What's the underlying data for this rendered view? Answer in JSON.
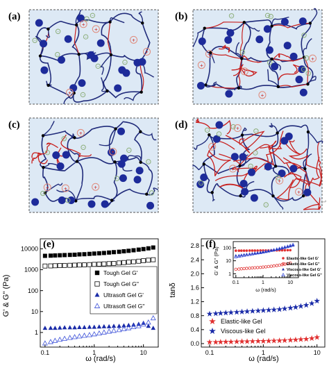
{
  "figure": {
    "panel_labels": [
      "(a)",
      "(b)",
      "(c)",
      "(d)",
      "(e)",
      "(f)"
    ],
    "colors": {
      "background": "#dde9f5",
      "chain": "#1f2a7a",
      "red_chain": "#c8201e",
      "blue_bead": "#1d2b9a",
      "plus_ion": "#e08a7a",
      "minus_ion": "#8cae7a"
    },
    "ion_symbols": {
      "plus": "+",
      "minus": "−"
    },
    "trailing_mark": "↩"
  },
  "chart_data": [
    {
      "type": "scatter",
      "panel": "(e)",
      "xlabel": "ω (rad/s)",
      "ylabel": "G' & G'' (Pa)",
      "xscale": "log",
      "yscale": "log",
      "xlim": [
        0.08,
        20
      ],
      "ylim": [
        0.2,
        30000
      ],
      "x_ticks": [
        0.1,
        1,
        10
      ],
      "x_tick_labels": [
        "0.1",
        "1",
        "10"
      ],
      "y_ticks": [
        1,
        10,
        100,
        1000,
        10000
      ],
      "y_tick_labels": [
        "1",
        "10",
        "100",
        "1000",
        "10000"
      ],
      "legend_position": "right",
      "series": [
        {
          "name": "Tough Gel G'",
          "marker": "square-filled",
          "color": "#000000",
          "x": [
            0.1,
            0.13,
            0.16,
            0.2,
            0.25,
            0.32,
            0.4,
            0.5,
            0.63,
            0.8,
            1,
            1.26,
            1.58,
            2,
            2.5,
            3.2,
            4,
            5,
            6.3,
            8,
            10,
            12.6,
            15.8
          ],
          "values": [
            4600,
            4700,
            4800,
            4900,
            5000,
            5100,
            5200,
            5400,
            5500,
            5700,
            5900,
            6100,
            6300,
            6600,
            6900,
            7200,
            7600,
            8000,
            8500,
            9100,
            9700,
            10500,
            11500
          ]
        },
        {
          "name": "Tough Gel G''",
          "marker": "square-open",
          "color": "#000000",
          "x": [
            0.1,
            0.13,
            0.16,
            0.2,
            0.25,
            0.32,
            0.4,
            0.5,
            0.63,
            0.8,
            1,
            1.26,
            1.58,
            2,
            2.5,
            3.2,
            4,
            5,
            6.3,
            8,
            10,
            12.6,
            15.8
          ],
          "values": [
            1500,
            1520,
            1550,
            1580,
            1600,
            1620,
            1650,
            1680,
            1700,
            1750,
            1800,
            1850,
            1900,
            1950,
            2000,
            2100,
            2200,
            2300,
            2400,
            2550,
            2700,
            2850,
            3000
          ]
        },
        {
          "name": "Ultrasoft Gel G'",
          "marker": "triangle-filled",
          "color": "#1a2ba8",
          "x": [
            0.1,
            0.13,
            0.16,
            0.2,
            0.25,
            0.32,
            0.4,
            0.5,
            0.63,
            0.8,
            1,
            1.26,
            1.58,
            2,
            2.5,
            3.2,
            4,
            5,
            6.3,
            8,
            10,
            12.6,
            15.8
          ],
          "values": [
            1.6,
            1.6,
            1.6,
            1.65,
            1.7,
            1.7,
            1.7,
            1.75,
            1.75,
            1.8,
            1.8,
            1.85,
            1.9,
            1.9,
            2.0,
            2.0,
            2.1,
            2.2,
            2.3,
            2.5,
            2.8,
            2.0,
            1.6
          ]
        },
        {
          "name": "Ultrasoft Gel G''",
          "marker": "triangle-open",
          "color": "#3a4fd8",
          "x": [
            0.1,
            0.13,
            0.16,
            0.2,
            0.25,
            0.32,
            0.4,
            0.5,
            0.63,
            0.8,
            1,
            1.26,
            1.58,
            2,
            2.5,
            3.2,
            4,
            5,
            6.3,
            8,
            10,
            12.6,
            15.8
          ],
          "values": [
            0.3,
            0.35,
            0.4,
            0.45,
            0.5,
            0.55,
            0.6,
            0.65,
            0.7,
            0.75,
            0.82,
            0.9,
            1.0,
            1.1,
            1.2,
            1.3,
            1.45,
            1.6,
            1.8,
            2.0,
            2.4,
            3.0,
            4.8
          ]
        }
      ]
    },
    {
      "type": "scatter",
      "panel": "(f)",
      "xlabel": "ω (rad/s)",
      "ylabel": "tanδ",
      "xscale": "log",
      "xlim": [
        0.07,
        14
      ],
      "ylim": [
        -0.1,
        3.0
      ],
      "x_ticks": [
        0.1,
        1,
        10
      ],
      "x_tick_labels": [
        "0.1",
        "1",
        "10"
      ],
      "y_ticks": [
        0.0,
        0.4,
        0.8,
        1.2,
        1.6,
        2.0,
        2.4,
        2.8
      ],
      "y_tick_labels": [
        "0.0",
        "0.4",
        "0.8",
        "1.2",
        "1.6",
        "2.0",
        "2.4",
        "2.8"
      ],
      "legend_position": "bottom-left",
      "series": [
        {
          "name": "Elastic-like Gel",
          "marker": "star",
          "color": "#e03030",
          "x": [
            0.1,
            0.13,
            0.16,
            0.2,
            0.25,
            0.32,
            0.4,
            0.5,
            0.63,
            0.8,
            1,
            1.26,
            1.58,
            2,
            2.5,
            3.2,
            4,
            5,
            6.3,
            8,
            10
          ],
          "values": [
            0.04,
            0.04,
            0.045,
            0.05,
            0.05,
            0.055,
            0.06,
            0.06,
            0.065,
            0.07,
            0.07,
            0.075,
            0.08,
            0.085,
            0.09,
            0.1,
            0.11,
            0.12,
            0.13,
            0.15,
            0.18
          ]
        },
        {
          "name": "Viscous-like Gel",
          "marker": "star",
          "color": "#1a2ba8",
          "x": [
            0.1,
            0.13,
            0.16,
            0.2,
            0.25,
            0.32,
            0.4,
            0.5,
            0.63,
            0.8,
            1,
            1.26,
            1.58,
            2,
            2.5,
            3.2,
            4,
            5,
            6.3,
            8,
            10
          ],
          "values": [
            0.85,
            0.86,
            0.87,
            0.88,
            0.89,
            0.9,
            0.91,
            0.92,
            0.93,
            0.94,
            0.95,
            0.96,
            0.97,
            0.98,
            1.0,
            1.02,
            1.04,
            1.07,
            1.1,
            1.15,
            1.22
          ]
        }
      ],
      "inset": {
        "xlabel": "ω (rad/s)",
        "ylabel": "G' & G'' (Pa)",
        "xscale": "log",
        "yscale": "log",
        "xlim": [
          0.08,
          20
        ],
        "ylim": [
          0.5,
          300
        ],
        "x_ticks": [
          0.1,
          1,
          10
        ],
        "x_tick_labels": [
          "0.1",
          "1",
          "10"
        ],
        "y_ticks": [
          1,
          10,
          100
        ],
        "y_tick_labels": [
          "1",
          "10",
          "100"
        ],
        "legend_position": "right",
        "series": [
          {
            "name": "Elastic-like Gel G'",
            "marker": "circle-filled",
            "color": "#e03030",
            "x": [
              0.1,
              0.13,
              0.16,
              0.2,
              0.25,
              0.32,
              0.4,
              0.5,
              0.63,
              0.8,
              1,
              1.26,
              1.58,
              2,
              2.5,
              3.2,
              4,
              5,
              6.3,
              8,
              10
            ],
            "values": [
              60,
              60,
              60,
              60,
              60,
              61,
              61,
              61,
              61,
              62,
              62,
              62,
              62,
              63,
              63,
              63,
              64,
              64,
              64,
              65,
              65
            ]
          },
          {
            "name": "Elastic-like Gel G''",
            "marker": "circle-open",
            "color": "#e03030",
            "x": [
              0.1,
              0.13,
              0.16,
              0.2,
              0.25,
              0.32,
              0.4,
              0.5,
              0.63,
              0.8,
              1,
              1.26,
              1.58,
              2,
              2.5,
              3.2,
              4,
              5,
              6.3,
              8,
              10
            ],
            "values": [
              2.2,
              2.3,
              2.4,
              2.5,
              2.6,
              2.7,
              2.8,
              2.9,
              3.0,
              3.1,
              3.3,
              3.4,
              3.6,
              3.8,
              4.0,
              4.3,
              4.6,
              5.0,
              5.5,
              6.0,
              6.8
            ]
          },
          {
            "name": "Viscous-like Gel G'",
            "marker": "triangle-filled",
            "color": "#1a2ba8",
            "x": [
              0.1,
              0.13,
              0.16,
              0.2,
              0.25,
              0.32,
              0.4,
              0.5,
              0.63,
              0.8,
              1,
              1.26,
              1.58,
              2,
              2.5,
              3.2,
              4,
              5,
              6.3,
              8,
              10,
              12.6
            ],
            "values": [
              25,
              26,
              28,
              30,
              32,
              34,
              36,
              38,
              40,
              43,
              46,
              50,
              55,
              60,
              65,
              72,
              80,
              90,
              100,
              115,
              130,
              150
            ]
          },
          {
            "name": "Viscous-like Gel G''",
            "marker": "triangle-open",
            "color": "#3a4fd8",
            "x": [
              0.1,
              0.13,
              0.16,
              0.2,
              0.25,
              0.32,
              0.4,
              0.5,
              0.63,
              0.8,
              1,
              1.26,
              1.58,
              2,
              2.5,
              3.2,
              4,
              5,
              6.3,
              8,
              10,
              12.6
            ],
            "values": [
              20,
              22,
              24,
              26,
              28,
              30,
              33,
              36,
              39,
              42,
              46,
              50,
              55,
              61,
              68,
              76,
              85,
              96,
              110,
              125,
              145,
              170
            ]
          }
        ]
      }
    }
  ]
}
